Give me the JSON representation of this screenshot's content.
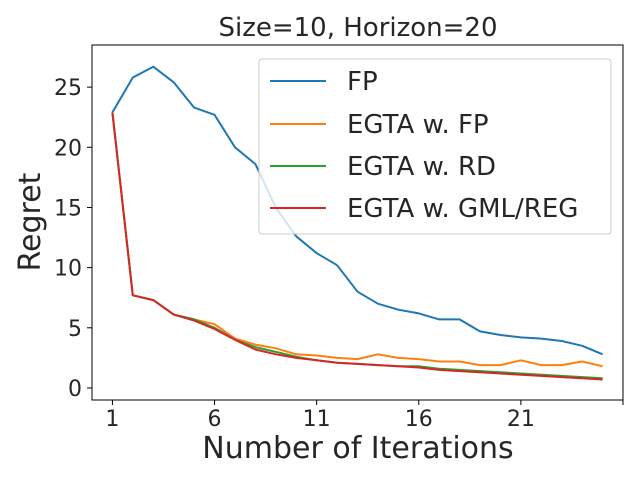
{
  "chart_data": {
    "type": "line",
    "title": "Size=10, Horizon=20",
    "xlabel": "Number of Iterations",
    "ylabel": "Regret",
    "xlim": [
      0,
      26
    ],
    "ylim": [
      -1,
      28.5
    ],
    "xticks": [
      1,
      6,
      11,
      16,
      21,
      26
    ],
    "xtick_labels": [
      "1",
      "6",
      "11",
      "16",
      "21",
      ""
    ],
    "yticks": [
      0,
      5,
      10,
      15,
      20,
      25
    ],
    "ytick_labels": [
      "0",
      "5",
      "10",
      "15",
      "20",
      "25"
    ],
    "grid": false,
    "legend_position": "top-right",
    "x": [
      1,
      2,
      3,
      4,
      5,
      6,
      7,
      8,
      9,
      10,
      11,
      12,
      13,
      14,
      15,
      16,
      17,
      18,
      19,
      20,
      21,
      22,
      23,
      24,
      25
    ],
    "series": [
      {
        "name": "FP",
        "color": "#1f77b4",
        "values": [
          22.9,
          25.8,
          26.7,
          25.4,
          23.3,
          22.7,
          20.0,
          18.6,
          15.0,
          12.6,
          11.2,
          10.2,
          8.0,
          7.0,
          6.5,
          6.2,
          5.7,
          5.7,
          4.7,
          4.4,
          4.2,
          4.1,
          3.9,
          3.5,
          2.8
        ]
      },
      {
        "name": "EGTA w. FP",
        "color": "#ff7f0e",
        "values": [
          22.9,
          7.7,
          7.3,
          6.1,
          5.7,
          5.3,
          4.1,
          3.6,
          3.3,
          2.8,
          2.7,
          2.5,
          2.4,
          2.8,
          2.5,
          2.4,
          2.2,
          2.2,
          1.9,
          1.9,
          2.3,
          1.9,
          1.9,
          2.2,
          1.8
        ]
      },
      {
        "name": "EGTA w. RD",
        "color": "#2ca02c",
        "values": [
          22.9,
          7.7,
          7.3,
          6.1,
          5.7,
          5.0,
          4.0,
          3.4,
          3.0,
          2.6,
          2.3,
          2.1,
          2.0,
          1.9,
          1.8,
          1.8,
          1.6,
          1.5,
          1.4,
          1.3,
          1.2,
          1.1,
          1.0,
          0.9,
          0.8
        ]
      },
      {
        "name": "EGTA w. GML/REG",
        "color": "#d62728",
        "values": [
          22.9,
          7.7,
          7.3,
          6.1,
          5.6,
          4.9,
          4.0,
          3.2,
          2.8,
          2.5,
          2.3,
          2.1,
          2.0,
          1.9,
          1.8,
          1.7,
          1.5,
          1.4,
          1.3,
          1.2,
          1.1,
          1.0,
          0.9,
          0.8,
          0.7
        ]
      }
    ]
  }
}
